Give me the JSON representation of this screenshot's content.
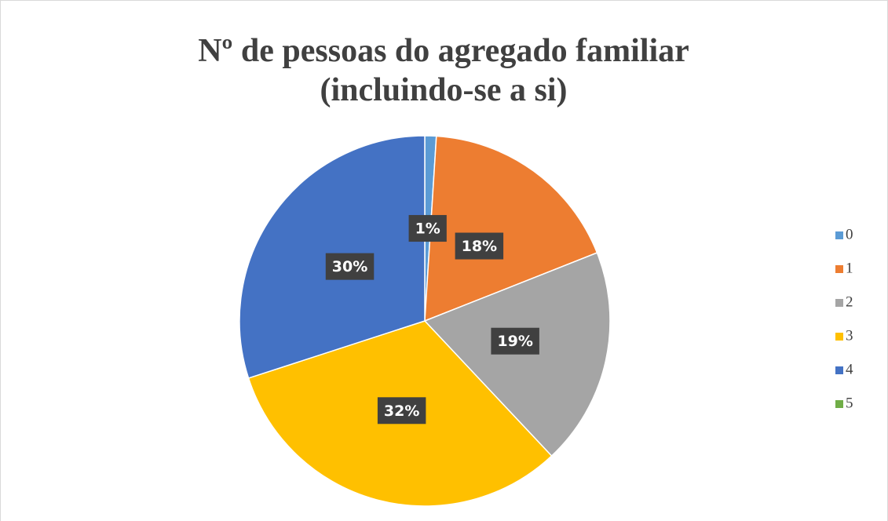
{
  "chart_data": {
    "type": "pie",
    "title": "Nº de pessoas do agregado familiar",
    "subtitle": "(incluindo-se a si)",
    "categories": [
      "0",
      "1",
      "2",
      "3",
      "4",
      "5"
    ],
    "values": [
      1,
      18,
      19,
      32,
      30,
      0
    ],
    "value_labels": [
      "1%",
      "18%",
      "19%",
      "32%",
      "30%",
      null
    ],
    "colors": [
      "#5b9bd5",
      "#ed7d31",
      "#a5a5a5",
      "#ffc000",
      "#4472c4",
      "#70ad47"
    ],
    "legend": "right"
  }
}
